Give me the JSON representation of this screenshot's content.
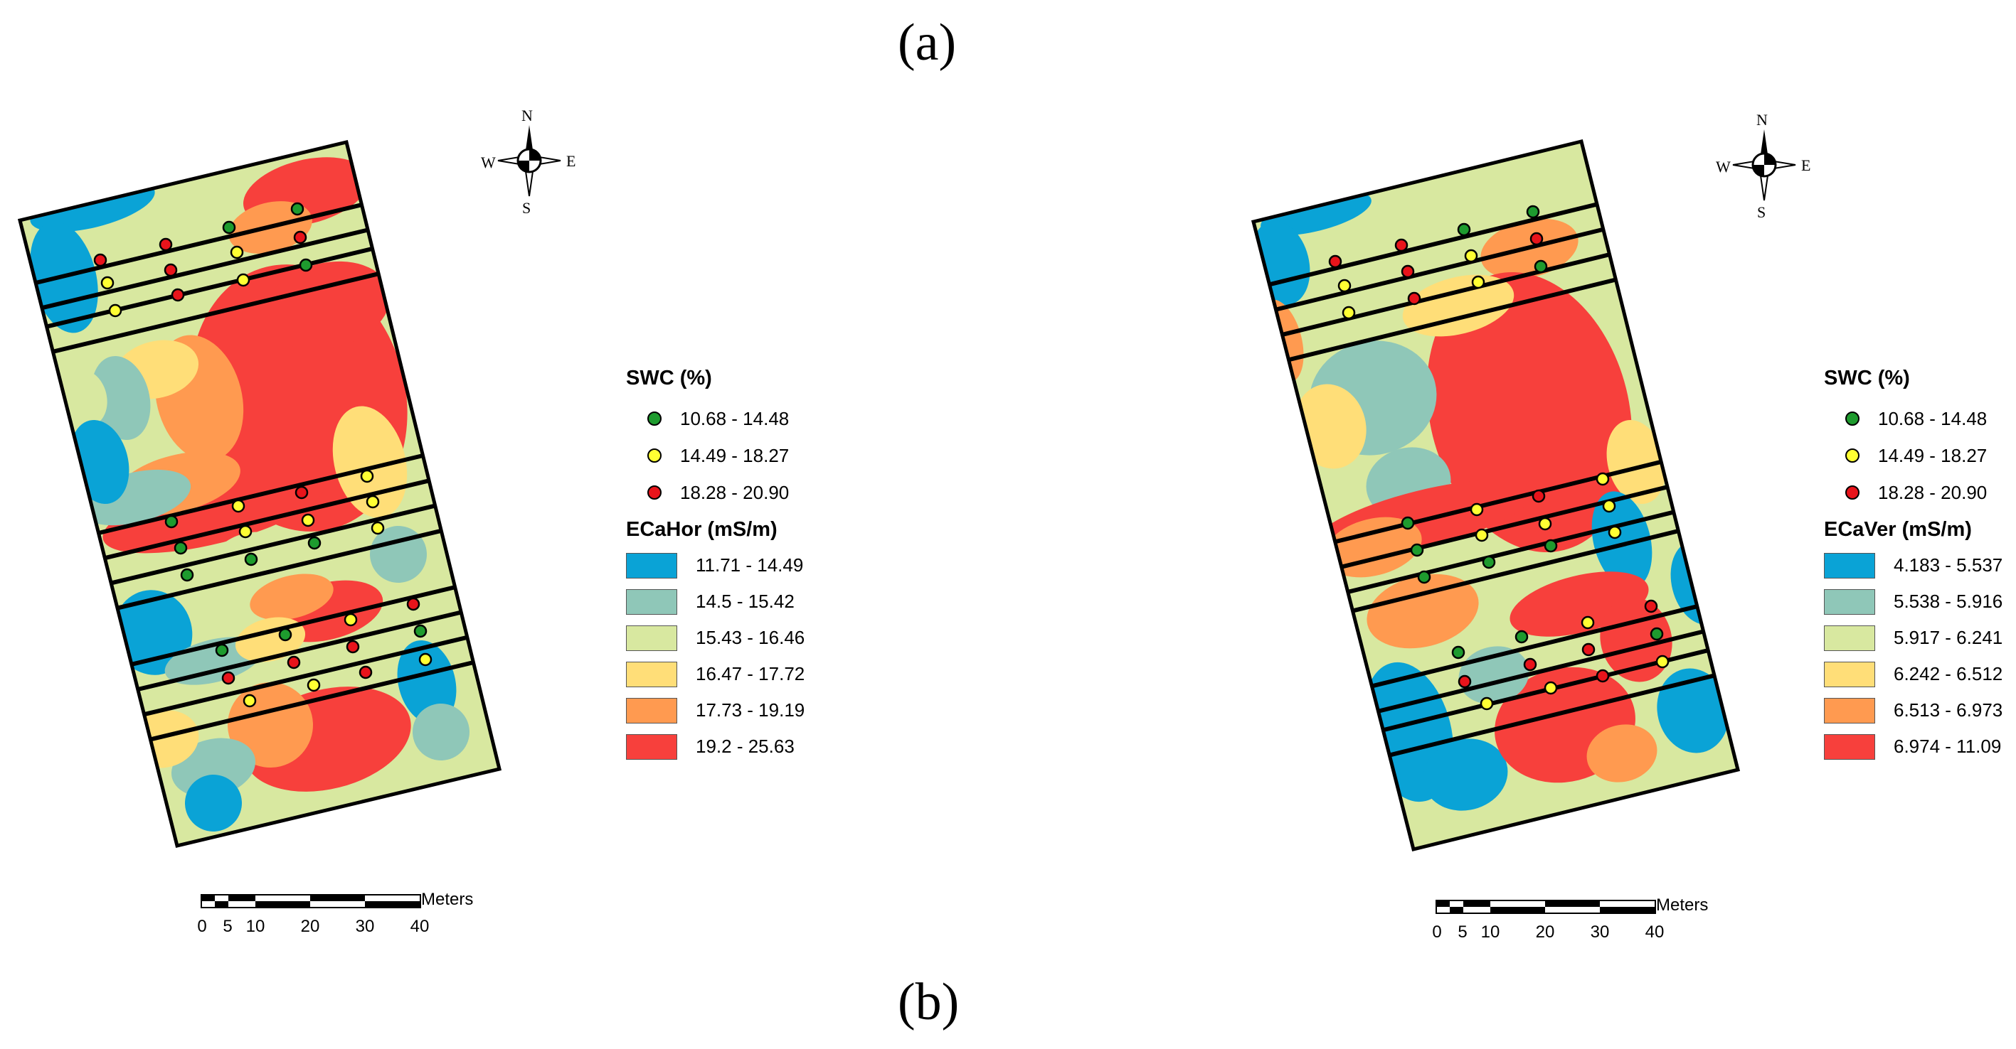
{
  "panel_labels": {
    "a": "(a)",
    "b": "(b)"
  },
  "compass": {
    "n": "N",
    "s": "S",
    "e": "E",
    "w": "W"
  },
  "swc_legend": {
    "title": "SWC (%)",
    "classes": [
      {
        "label": "10.68 - 14.48",
        "color": "#1e9b2e"
      },
      {
        "label": "14.49 - 18.27",
        "color": "#ffff33"
      },
      {
        "label": "18.28 - 20.90",
        "color": "#e8141b"
      }
    ]
  },
  "ec_color_ramp": [
    "#0aa3d6",
    "#8fc7b8",
    "#d8e8a0",
    "#ffde78",
    "#ff9a50",
    "#f7403c"
  ],
  "maps": [
    {
      "ec_title": "ECaHor (mS/m)",
      "ec_classes": [
        "11.71 - 14.49",
        "14.5 - 15.42",
        "15.43 - 16.46",
        "16.47 - 17.72",
        "17.73 - 19.19",
        "19.2 - 25.63"
      ]
    },
    {
      "ec_title": "ECaVer (mS/m)",
      "ec_classes": [
        "4.183 - 5.537",
        "5.538 - 5.916",
        "5.917 - 6.241",
        "6.242 - 6.512",
        "6.513 - 6.973",
        "6.974 - 11.09"
      ]
    }
  ],
  "scalebar": {
    "unit": "Meters",
    "ticks": [
      "0",
      "5",
      "10",
      "20",
      "30",
      "40"
    ]
  }
}
